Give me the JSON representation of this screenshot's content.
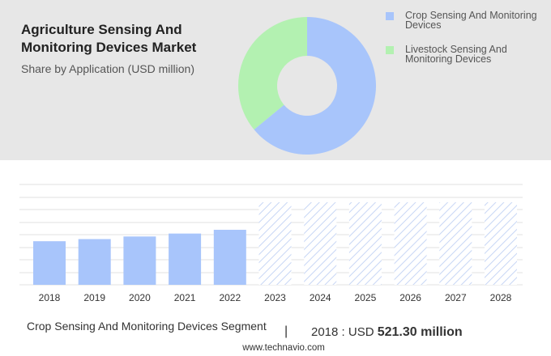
{
  "header": {
    "title": "Agriculture Sensing And Monitoring Devices Market",
    "subtitle": "Share by Application (USD million)"
  },
  "legend": [
    {
      "label": "Crop Sensing And Monitoring Devices",
      "color": "#a8c5fb"
    },
    {
      "label": "Livestock Sensing And Monitoring Devices",
      "color": "#b3f1b1"
    }
  ],
  "chart_data": [
    {
      "type": "pie",
      "donut": true,
      "categories": [
        "Crop Sensing And Monitoring Devices",
        "Livestock Sensing And Monitoring Devices"
      ],
      "values": [
        64,
        36
      ],
      "colors": [
        "#a8c5fb",
        "#b3f1b1"
      ]
    },
    {
      "type": "bar",
      "categories": [
        "2018",
        "2019",
        "2020",
        "2021",
        "2022",
        "2023",
        "2024",
        "2025",
        "2026",
        "2027",
        "2028"
      ],
      "values": [
        521.3,
        547,
        578,
        613,
        658,
        null,
        null,
        null,
        null,
        null,
        null
      ],
      "forecast_years": [
        "2023",
        "2024",
        "2025",
        "2026",
        "2027",
        "2028"
      ],
      "ylim": [
        0,
        1200
      ],
      "grid": true,
      "bar_color": "#a8c5fb"
    }
  ],
  "footer": {
    "segment": "Crop Sensing And Monitoring Devices Segment",
    "divider": "|",
    "value_prefix": "2018 : USD",
    "value": "521.30 million",
    "site": "www.technavio.com"
  }
}
